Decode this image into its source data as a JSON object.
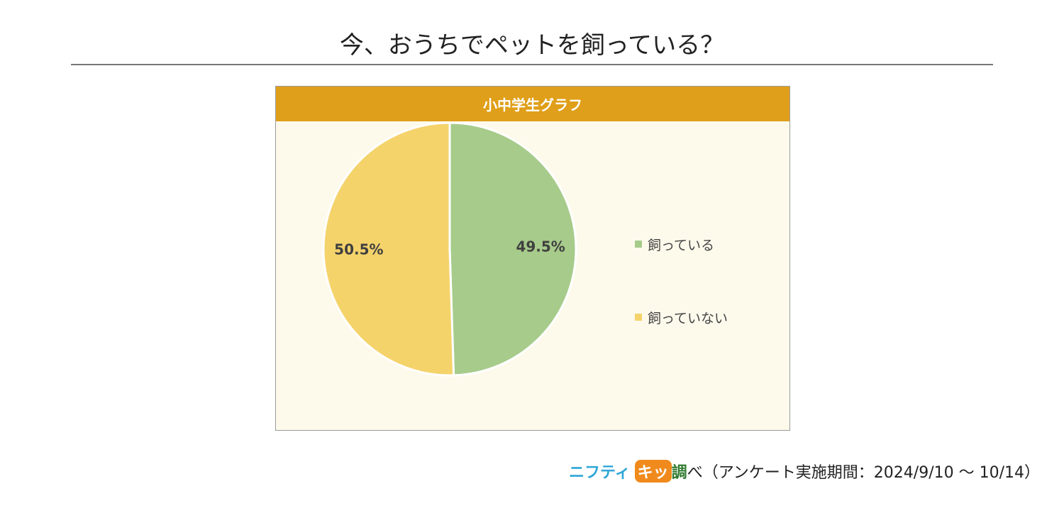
{
  "title": "今、おうちでペットを飼っている？",
  "chart_data": {
    "type": "pie",
    "title": "小中学生グラフ",
    "start_angle_deg": 0,
    "direction": "clockwise",
    "slices": [
      {
        "label": "飼っている",
        "value": 49.5,
        "display": "49.5%",
        "color": "#a7cb8b"
      },
      {
        "label": "飼っていない",
        "value": 50.5,
        "display": "50.5%",
        "color": "#f5d36b"
      }
    ],
    "legend_position": "right",
    "label_color": "#404040",
    "slice_border_color": "#ffffff"
  },
  "footer": {
    "brand_part1": "ニフティ",
    "brand_part2": "キッ",
    "brand_part3": "調",
    "text": "べ（アンケート実施期間：2024/9/10 ～ 10/14）"
  }
}
